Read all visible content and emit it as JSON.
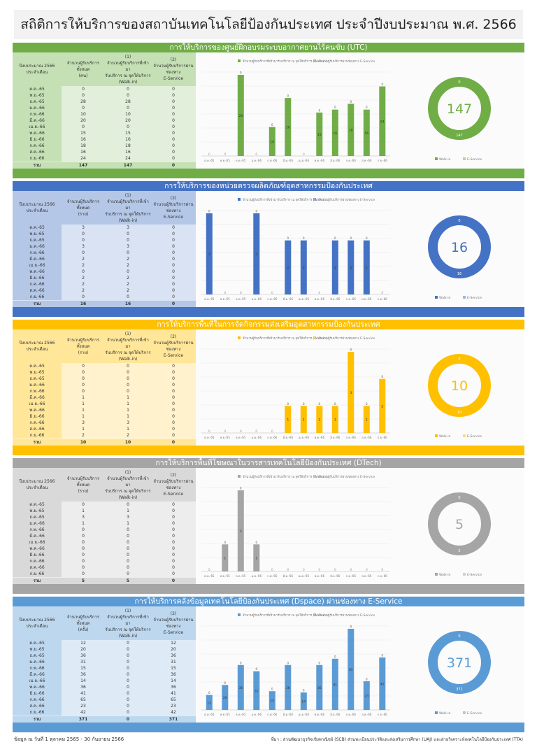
{
  "main_title": "สถิติการให้บริการของสถาบันเทคโนโลยีป้องกันประเทศ ประจำปีงบประมาณ พ.ศ. 2566",
  "table_headers": {
    "period": "ปีงบประมาณ 2566\nประจำเดือน",
    "total": "จำนวนผู้รับบริการทั้งหมด",
    "walkin_num": "(1)",
    "walkin": "จำนวนผู้รับบริการที่เข้ามา\nรับบริการ ณ จุดให้บริการ\n(Walk-in)",
    "eservice_num": "(2)",
    "eservice": "จำนวนผู้รับบริการผ่าน\nช่องทาง\nE-Service"
  },
  "months": [
    "ต.ค.-65",
    "พ.ย.-65",
    "ธ.ค.-65",
    "ม.ค.-66",
    "ก.พ.-66",
    "มี.ค.-66",
    "เม.ย.-66",
    "พ.ค.-66",
    "มิ.ย.-66",
    "ก.ค.-66",
    "ส.ค.-66",
    "ก.ย.-66"
  ],
  "total_label": "รวม",
  "legend": {
    "walkin": "จำนวนผู้รับบริการที่เข้ามารับบริการ ณ จุดให้บริการ (Walk-in)",
    "eservice": "จำนวนผู้รับบริการผ่านช่องทาง E-Service",
    "donut_walkin": "Walk-in",
    "donut_eservice": "E-Service"
  },
  "sections": [
    {
      "title": "การให้บริการของศูนย์ฝึกอบรมระบบอากาศยานไร้คนขับ (UTC)",
      "unit": "(คน)",
      "color": "#70ad47",
      "light": "#c5e0b4",
      "pale": "#e2efda",
      "walkin": [
        0,
        0,
        28,
        0,
        10,
        20,
        0,
        15,
        16,
        18,
        16,
        24
      ],
      "eservice": [
        0,
        0,
        0,
        0,
        0,
        0,
        0,
        0,
        0,
        0,
        0,
        0
      ],
      "total": 147,
      "walkin_total": 147,
      "eservice_total": 0,
      "donut_value": "147"
    },
    {
      "title": "การให้บริการของหน่วยตรวจผลิตภัณฑ์อุตสาหกรรมป้องกันประเทศ",
      "unit": "(ราย)",
      "color": "#4472c4",
      "light": "#b4c7e7",
      "pale": "#dae3f3",
      "walkin": [
        3,
        0,
        0,
        3,
        0,
        2,
        2,
        0,
        2,
        2,
        2,
        0
      ],
      "eservice": [
        0,
        0,
        0,
        0,
        0,
        0,
        0,
        0,
        0,
        0,
        0,
        0
      ],
      "total": 16,
      "walkin_total": 16,
      "eservice_total": 0,
      "donut_value": "16"
    },
    {
      "title": "การให้บริการพื้นที่ในการจัดกิจกรรมส่งเสริมอุตสาหกรรมป้องกันประเทศ",
      "unit": "(ราย)",
      "color": "#ffc000",
      "light": "#ffe699",
      "pale": "#fff2cc",
      "walkin": [
        0,
        0,
        0,
        0,
        0,
        1,
        1,
        1,
        1,
        3,
        1,
        2
      ],
      "eservice": [
        0,
        0,
        0,
        0,
        0,
        0,
        0,
        0,
        0,
        0,
        0,
        0
      ],
      "total": 10,
      "walkin_total": 10,
      "eservice_total": 0,
      "donut_value": "10"
    },
    {
      "title": "การให้บริการพื้นที่โฆษณาในวารสารเทคโนโลยีป้องกันประเทศ (DTech)",
      "unit": "(ราย)",
      "color": "#a5a5a5",
      "light": "#d9d9d9",
      "pale": "#ededed",
      "walkin": [
        0,
        1,
        3,
        1,
        0,
        0,
        0,
        0,
        0,
        0,
        0,
        0
      ],
      "eservice": [
        0,
        0,
        0,
        0,
        0,
        0,
        0,
        0,
        0,
        0,
        0,
        0
      ],
      "total": 5,
      "walkin_total": 5,
      "eservice_total": 0,
      "donut_value": "5"
    },
    {
      "title": "การให้บริการคลังข้อมูลเทคโนโลยีป้องกันประเทศ (Dspace) ผ่านช่องทาง E-Service",
      "unit": "(ครั้ง)",
      "color": "#5b9bd5",
      "light": "#bdd7ee",
      "pale": "#deebf7",
      "walkin": [
        0,
        0,
        0,
        0,
        0,
        0,
        0,
        0,
        0,
        0,
        0,
        0
      ],
      "eservice": [
        12,
        20,
        36,
        31,
        15,
        36,
        14,
        36,
        41,
        65,
        23,
        42
      ],
      "total": 371,
      "walkin_total": 0,
      "eservice_total": 371,
      "donut_value": "371"
    }
  ],
  "chart_data": [
    {
      "type": "bar",
      "title": "การให้บริการของศูนย์ฝึกอบรมระบบอากาศยานไร้คนขับ (UTC)",
      "categories": [
        "ต.ค.-65",
        "พ.ย.-65",
        "ธ.ค.-65",
        "ม.ค.-66",
        "ก.พ.-66",
        "มี.ค.-66",
        "เม.ย.-66",
        "พ.ค.-66",
        "มิ.ย.-66",
        "ก.ค.-66",
        "ส.ค.-66",
        "ก.ย.-66"
      ],
      "series": [
        {
          "name": "จำนวนผู้รับบริการที่เข้ามารับบริการ ณ จุดให้บริการ (Walk-in)",
          "values": [
            0,
            0,
            28,
            0,
            10,
            20,
            0,
            15,
            16,
            18,
            16,
            24
          ]
        },
        {
          "name": "จำนวนผู้รับบริการผ่านช่องทาง E-Service",
          "values": [
            0,
            0,
            0,
            0,
            0,
            0,
            0,
            0,
            0,
            0,
            0,
            0
          ]
        }
      ]
    },
    {
      "type": "bar",
      "title": "การให้บริการของหน่วยตรวจผลิตภัณฑ์อุตสาหกรรมป้องกันประเทศ",
      "categories": [
        "ต.ค.-65",
        "พ.ย.-65",
        "ธ.ค.-65",
        "ม.ค.-66",
        "ก.พ.-66",
        "มี.ค.-66",
        "เม.ย.-66",
        "พ.ค.-66",
        "มิ.ย.-66",
        "ก.ค.-66",
        "ส.ค.-66",
        "ก.ย.-66"
      ],
      "series": [
        {
          "name": "จำนวนผู้รับบริการที่เข้ามารับบริการ ณ จุดให้บริการ (Walk-in)",
          "values": [
            3,
            0,
            0,
            3,
            0,
            2,
            2,
            0,
            2,
            2,
            2,
            0
          ]
        },
        {
          "name": "จำนวนผู้รับบริการผ่านช่องทาง E-Service",
          "values": [
            0,
            0,
            0,
            0,
            0,
            0,
            0,
            0,
            0,
            0,
            0,
            0
          ]
        }
      ]
    },
    {
      "type": "bar",
      "title": "การให้บริการพื้นที่ในการจัดกิจกรรมส่งเสริมอุตสาหกรรมป้องกันประเทศ",
      "categories": [
        "ต.ค.-65",
        "พ.ย.-65",
        "ธ.ค.-65",
        "ม.ค.-66",
        "ก.พ.-66",
        "มี.ค.-66",
        "เม.ย.-66",
        "พ.ค.-66",
        "มิ.ย.-66",
        "ก.ค.-66",
        "ส.ค.-66",
        "ก.ย.-66"
      ],
      "series": [
        {
          "name": "จำนวนผู้รับบริการที่เข้ามารับบริการ ณ จุดให้บริการ (Walk-in)",
          "values": [
            0,
            0,
            0,
            0,
            0,
            1,
            1,
            1,
            1,
            3,
            1,
            2
          ]
        },
        {
          "name": "จำนวนผู้รับบริการผ่านช่องทาง E-Service",
          "values": [
            0,
            0,
            0,
            0,
            0,
            0,
            0,
            0,
            0,
            0,
            0,
            0
          ]
        }
      ]
    },
    {
      "type": "bar",
      "title": "การให้บริการพื้นที่โฆษณาในวารสารเทคโนโลยีป้องกันประเทศ (DTech)",
      "categories": [
        "ต.ค.-65",
        "พ.ย.-65",
        "ธ.ค.-65",
        "ม.ค.-66",
        "ก.พ.-66",
        "มี.ค.-66",
        "เม.ย.-66",
        "พ.ค.-66",
        "มิ.ย.-66",
        "ก.ค.-66",
        "ส.ค.-66",
        "ก.ย.-66"
      ],
      "series": [
        {
          "name": "จำนวนผู้รับบริการที่เข้ามารับบริการ ณ จุดให้บริการ (Walk-in)",
          "values": [
            0,
            1,
            3,
            1,
            0,
            0,
            0,
            0,
            0,
            0,
            0,
            0
          ]
        },
        {
          "name": "จำนวนผู้รับบริการผ่านช่องทาง E-Service",
          "values": [
            0,
            0,
            0,
            0,
            0,
            0,
            0,
            0,
            0,
            0,
            0,
            0
          ]
        }
      ]
    },
    {
      "type": "bar",
      "title": "การให้บริการคลังข้อมูลเทคโนโลยีป้องกันประเทศ (Dspace) ผ่านช่องทาง E-Service",
      "categories": [
        "ต.ค.-65",
        "พ.ย.-65",
        "ธ.ค.-65",
        "ม.ค.-66",
        "ก.พ.-66",
        "มี.ค.-66",
        "เม.ย.-66",
        "พ.ค.-66",
        "มิ.ย.-66",
        "ก.ค.-66",
        "ส.ค.-66",
        "ก.ย.-66"
      ],
      "series": [
        {
          "name": "จำนวนผู้รับบริการที่เข้ามารับบริการ ณ จุดให้บริการ (Walk-in)",
          "values": [
            0,
            0,
            0,
            0,
            0,
            0,
            0,
            0,
            0,
            0,
            0,
            0
          ]
        },
        {
          "name": "จำนวนผู้รับบริการผ่านช่องทาง E-Service",
          "values": [
            12,
            20,
            36,
            31,
            15,
            36,
            14,
            36,
            41,
            65,
            23,
            42
          ]
        }
      ]
    }
  ],
  "footer_left": "ข้อมูล ณ วันที่ 1 ตุลาคม 2565 - 30 กันยายน 2566",
  "footer_right": "ที่มา : ส่วนพัฒนาธุรกิจเชิงพาณิชย์ (SCB) ส่วนทะเบียนประวัติและส่งเสริมการศึกษา (UAJ) และฝ่ายวิเคราะห์เทคโนโลยีป้องกันประเทศ (TTA)"
}
